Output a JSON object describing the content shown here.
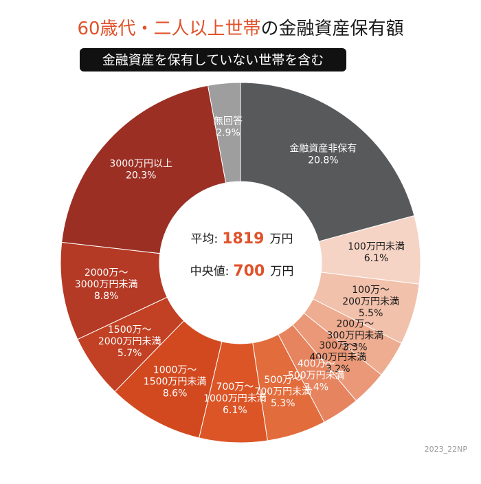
{
  "chart_data": {
    "type": "pie",
    "title": [
      "60歳代・二人以上世帯",
      "の金融資産保有額"
    ],
    "title_colors": [
      "#e0522a",
      "#1a1a1a"
    ],
    "subtitle": "金融資産を保有していない世帯を含む",
    "categories": [
      "金融資産非保有",
      "100万円未満",
      "100万～\n200万円未満",
      "200万～\n300万円未満",
      "300万～\n400万円未満",
      "400万～\n500万円未満",
      "500万～\n700万円未満",
      "700万～\n1000万円未満",
      "1000万～\n1500万円未満",
      "1500万～\n2000万円未満",
      "2000万～\n3000万円未満",
      "3000万円以上",
      "無回答"
    ],
    "values": [
      20.8,
      6.1,
      5.5,
      3.3,
      3.2,
      3.4,
      5.3,
      6.1,
      8.6,
      5.7,
      8.8,
      20.3,
      2.9
    ],
    "value_labels": [
      "20.8%",
      "6.1%",
      "5.5%",
      "3.3%",
      "3.2%",
      "3.4%",
      "5.3%",
      "6.1%",
      "8.6%",
      "5.7%",
      "8.8%",
      "20.3%",
      "2.9%"
    ],
    "colors": [
      "#58595b",
      "#f6d4c5",
      "#f2c1ab",
      "#eeac91",
      "#ea9878",
      "#e6845f",
      "#e26c3c",
      "#dc5527",
      "#d2491f",
      "#c24023",
      "#b53a25",
      "#9b2f24",
      "#9e9e9e"
    ],
    "center": {
      "mean_label": "平均:",
      "mean": 1819,
      "median_label": "中央値:",
      "median": 700,
      "unit": "万円"
    },
    "source": "2023_22NP"
  }
}
